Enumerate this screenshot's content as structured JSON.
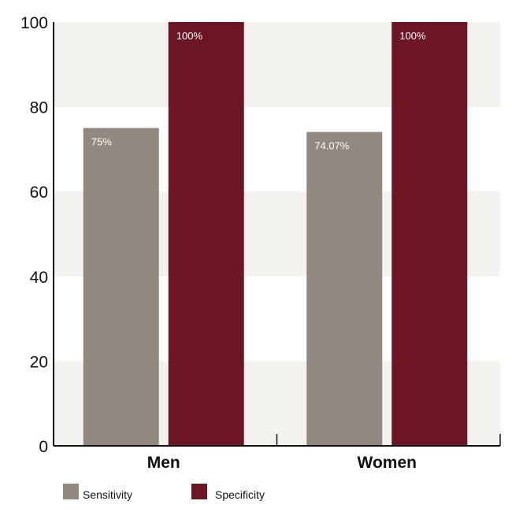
{
  "chart_data": {
    "type": "bar",
    "title": "",
    "xlabel": "",
    "ylabel": "",
    "categories": [
      "Men",
      "Women"
    ],
    "series": [
      {
        "name": "Sensitivity",
        "values": [
          75,
          74.07
        ],
        "labels": [
          "75%",
          "74.07%"
        ],
        "color": "#918980"
      },
      {
        "name": "Specificity",
        "values": [
          100,
          100
        ],
        "labels": [
          "100%",
          "100%"
        ],
        "color": "#6b1525"
      }
    ],
    "ylim": [
      0,
      100
    ],
    "yticks": [
      "0",
      "20",
      "40",
      "60",
      "80",
      "100"
    ],
    "band_color": "#f4f2ee",
    "legend_position": "bottom-left",
    "grid": false
  }
}
